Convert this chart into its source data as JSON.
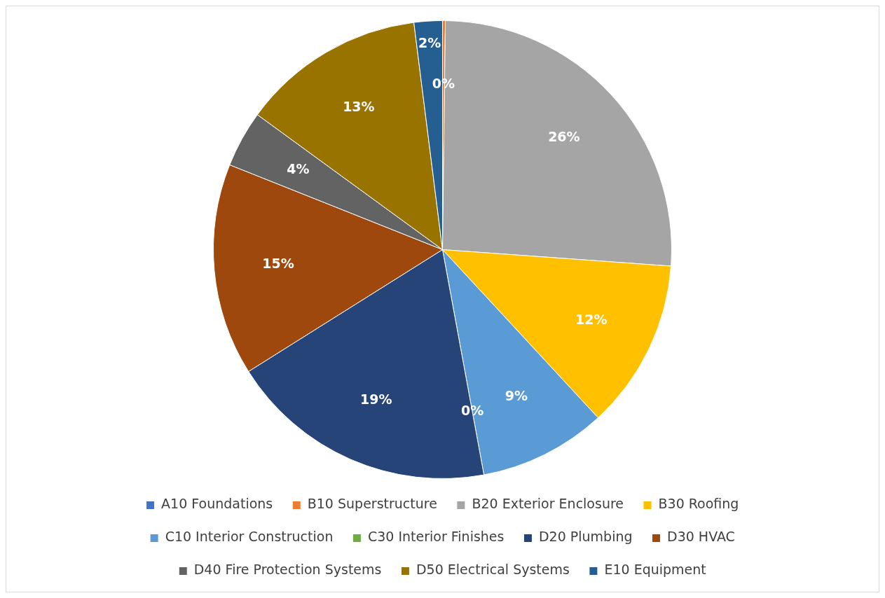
{
  "chart_data": {
    "type": "pie",
    "categories": [
      "A10 Foundations",
      "B10 Superstructure",
      "B20 Exterior Enclosure",
      "B30 Roofing",
      "C10 Interior Construction",
      "C30 Interior Finishes",
      "D20 Plumbing",
      "D30 HVAC",
      "D40 Fire Protection Systems",
      "D50 Electrical Systems",
      "E10 Equipment"
    ],
    "values": [
      0,
      0.2,
      26,
      12,
      9,
      0,
      19,
      15,
      4,
      13,
      2
    ],
    "value_labels": [
      null,
      "0%",
      "26%",
      "12%",
      "9%",
      "0%",
      "19%",
      "15%",
      "4%",
      "13%",
      "2%"
    ],
    "colors": [
      "#4472c4",
      "#ed7d31",
      "#a5a5a5",
      "#ffc000",
      "#5b9bd5",
      "#70ad47",
      "#264478",
      "#9e480e",
      "#636363",
      "#997300",
      "#255e91"
    ],
    "legend": "bottom"
  }
}
